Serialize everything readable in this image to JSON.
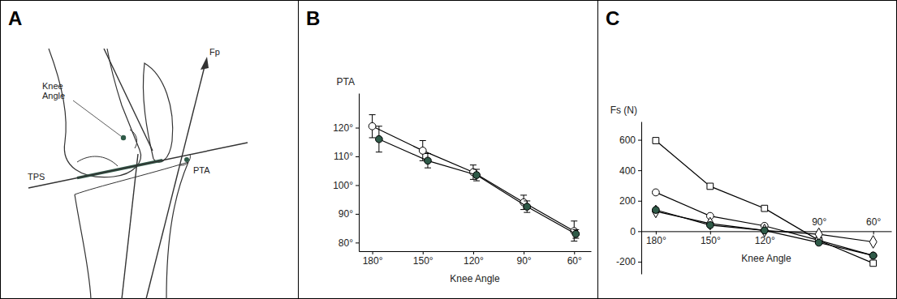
{
  "diagram": {
    "panel": "A",
    "labels": {
      "knee_angle": "Knee Angle",
      "force": "Fp",
      "plateau": "TPS",
      "angle": "PTA"
    }
  },
  "chart_data": [
    {
      "panel": "B",
      "type": "line",
      "x_label": "Knee Angle",
      "y_label": "PTA",
      "xlim": [
        188,
        50
      ],
      "xticks": [
        {
          "value": 180,
          "label": "180°"
        },
        {
          "value": 150,
          "label": "150°"
        },
        {
          "value": 120,
          "label": "120°"
        },
        {
          "value": 90,
          "label": "90°"
        },
        {
          "value": 60,
          "label": "60°"
        }
      ],
      "ylim": [
        77,
        132
      ],
      "yticks": [
        {
          "value": 80,
          "label": "80°"
        },
        {
          "value": 90,
          "label": "90°"
        },
        {
          "value": 100,
          "label": "100°"
        },
        {
          "value": 110,
          "label": "110°"
        },
        {
          "value": 120,
          "label": "120°"
        }
      ],
      "series": [
        {
          "x": [
            180,
            150,
            120,
            90,
            60
          ],
          "values": [
            120.5,
            112,
            104.5,
            94,
            84
          ],
          "errors": [
            4,
            3.5,
            2.5,
            2.5,
            3.5
          ],
          "color": "#ffffff",
          "marker": "circle"
        },
        {
          "x": [
            176,
            147,
            118,
            88,
            59
          ],
          "values": [
            116,
            108.5,
            103.5,
            92.5,
            83
          ],
          "errors": [
            4.5,
            2.5,
            2,
            2,
            1.5
          ],
          "color": "#2f5a48",
          "marker": "circle"
        }
      ]
    },
    {
      "panel": "C",
      "type": "line",
      "x_label": "Knee Angle",
      "y_label": "Fs (N)",
      "x": [
        180,
        150,
        120,
        90,
        60
      ],
      "xlim": [
        188,
        50
      ],
      "xticks": [
        {
          "value": 180,
          "label": "180°"
        },
        {
          "value": 150,
          "label": "150°"
        },
        {
          "value": 120,
          "label": "120°"
        },
        {
          "value": 90,
          "label": "90°"
        },
        {
          "value": 60,
          "label": "60°"
        }
      ],
      "ylim": [
        -280,
        720
      ],
      "yticks": [
        -200,
        0,
        200,
        400,
        600
      ],
      "series": [
        {
          "values": [
            595,
            295,
            150,
            -60,
            -210
          ],
          "color": "#ffffff",
          "marker": "square"
        },
        {
          "values": [
            255,
            100,
            35,
            -60,
            -160
          ],
          "color": "#ffffff",
          "marker": "circle"
        },
        {
          "values": [
            130,
            50,
            5,
            -20,
            -70
          ],
          "color": "#ffffff",
          "marker": "diamond"
        },
        {
          "values": [
            140,
            40,
            5,
            -75,
            -160
          ],
          "color": "#2f5a48",
          "marker": "circle"
        }
      ]
    }
  ]
}
